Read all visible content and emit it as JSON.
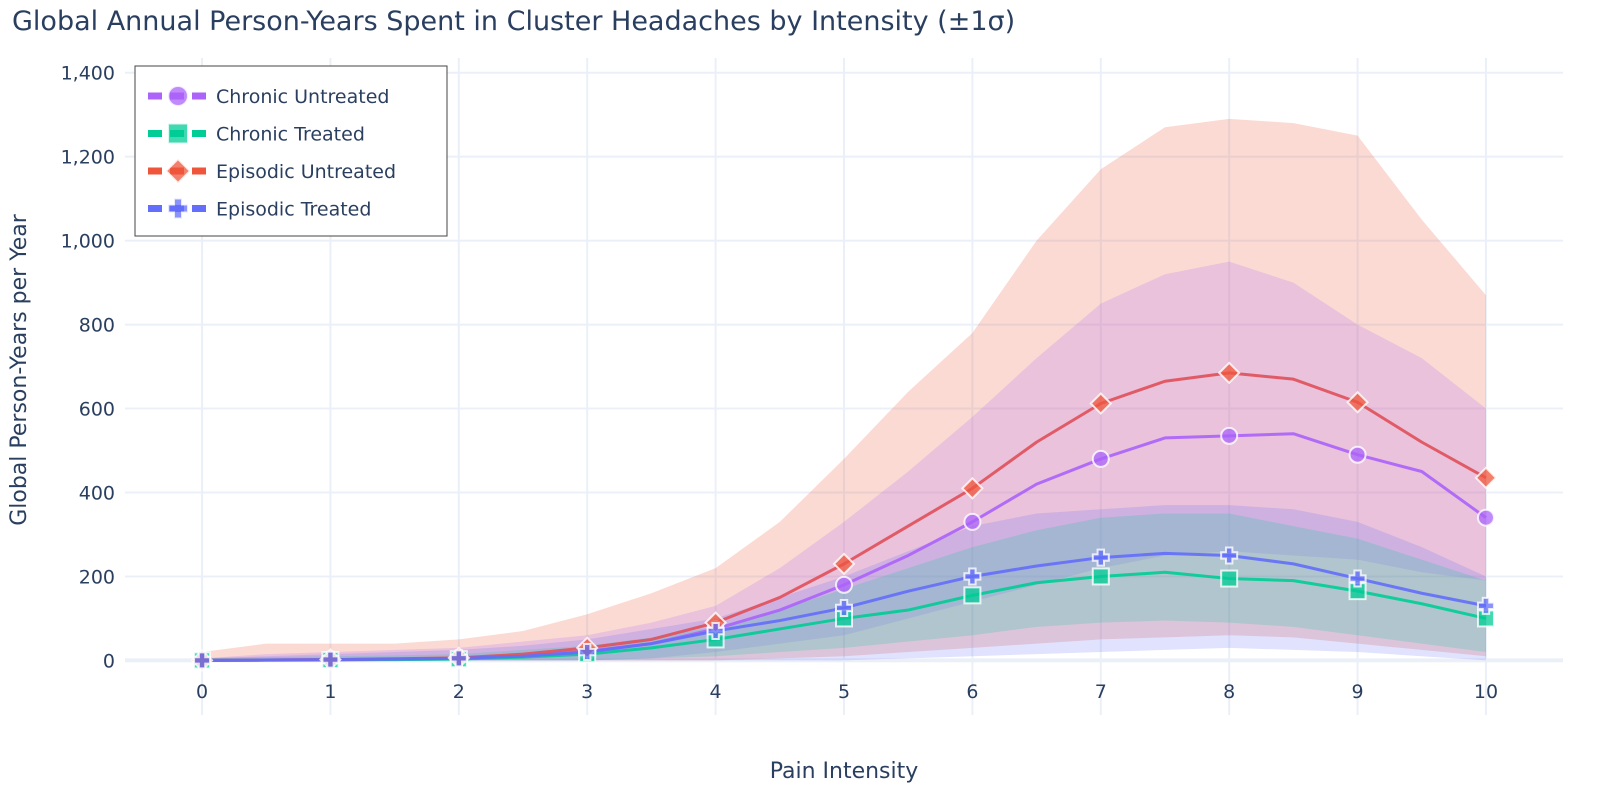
{
  "chart_data": {
    "type": "line",
    "title": "Global Annual Person-Years Spent in Cluster Headaches by Intensity (±1σ)",
    "xlabel": "Pain Intensity",
    "ylabel": "Global Person-Years per Year",
    "xlim": [
      -0.6,
      10.6
    ],
    "ylim": [
      -130,
      1435
    ],
    "grid": true,
    "legend_position": "top-left",
    "x_ticks": [
      "0",
      "1",
      "2",
      "3",
      "4",
      "5",
      "6",
      "7",
      "8",
      "9",
      "10"
    ],
    "y_ticks": [
      {
        "value": 0,
        "label": "0"
      },
      {
        "value": 200,
        "label": "200"
      },
      {
        "value": 400,
        "label": "400"
      },
      {
        "value": 600,
        "label": "600"
      },
      {
        "value": 800,
        "label": "800"
      },
      {
        "value": 1000,
        "label": "1,000"
      },
      {
        "value": 1200,
        "label": "1,200"
      },
      {
        "value": 1400,
        "label": "1,400"
      }
    ],
    "x": [
      0,
      0.5,
      1,
      1.5,
      2,
      2.5,
      3,
      3.5,
      4,
      4.5,
      5,
      5.5,
      6,
      6.5,
      7,
      7.5,
      8,
      8.5,
      9,
      9.5,
      10
    ],
    "series": [
      {
        "name": "Chronic Untreated",
        "color": "#AB63FA",
        "marker": "circle",
        "values": [
          0,
          1,
          2,
          3,
          5,
          10,
          22,
          40,
          75,
          120,
          180,
          250,
          330,
          420,
          480,
          530,
          535,
          540,
          490,
          450,
          340
        ],
        "upper": [
          5,
          15,
          20,
          25,
          30,
          45,
          60,
          90,
          130,
          220,
          330,
          450,
          580,
          720,
          850,
          920,
          950,
          900,
          800,
          720,
          600
        ],
        "lower": [
          0,
          0,
          0,
          0,
          0,
          0,
          0,
          5,
          20,
          40,
          60,
          100,
          140,
          180,
          220,
          250,
          260,
          250,
          240,
          210,
          190
        ]
      },
      {
        "name": "Chronic Treated",
        "color": "#00CC96",
        "marker": "square",
        "values": [
          0,
          0.5,
          1,
          2,
          3,
          8,
          15,
          30,
          50,
          75,
          100,
          120,
          155,
          185,
          200,
          210,
          195,
          190,
          165,
          135,
          100
        ],
        "upper": [
          5,
          8,
          10,
          12,
          15,
          25,
          35,
          55,
          80,
          120,
          170,
          220,
          270,
          310,
          340,
          350,
          350,
          320,
          290,
          240,
          190
        ],
        "lower": [
          0,
          0,
          0,
          0,
          0,
          0,
          0,
          5,
          10,
          20,
          30,
          45,
          60,
          80,
          90,
          95,
          90,
          80,
          60,
          40,
          20
        ]
      },
      {
        "name": "Episodic Untreated",
        "color": "#EF553B",
        "marker": "diamond",
        "values": [
          0,
          1,
          2,
          4,
          6,
          15,
          30,
          50,
          90,
          150,
          230,
          320,
          410,
          520,
          612,
          665,
          685,
          670,
          615,
          520,
          435
        ],
        "upper": [
          20,
          40,
          40,
          40,
          50,
          70,
          110,
          160,
          220,
          330,
          480,
          640,
          780,
          1000,
          1170,
          1270,
          1290,
          1280,
          1250,
          1050,
          870
        ],
        "lower": [
          0,
          0,
          0,
          0,
          0,
          0,
          0,
          0,
          0,
          5,
          10,
          20,
          30,
          40,
          50,
          55,
          60,
          55,
          40,
          25,
          10
        ]
      },
      {
        "name": "Episodic Treated",
        "color": "#636EFA",
        "marker": "cross",
        "values": [
          0,
          1,
          2,
          3,
          5,
          10,
          20,
          40,
          70,
          95,
          125,
          165,
          200,
          225,
          245,
          255,
          250,
          230,
          195,
          160,
          130
        ],
        "upper": [
          5,
          10,
          15,
          20,
          25,
          35,
          50,
          75,
          100,
          150,
          200,
          260,
          320,
          350,
          360,
          370,
          370,
          360,
          330,
          270,
          200
        ],
        "lower": [
          0,
          0,
          0,
          0,
          0,
          0,
          0,
          0,
          0,
          0,
          0,
          5,
          10,
          15,
          20,
          25,
          30,
          25,
          20,
          10,
          0
        ]
      }
    ]
  }
}
